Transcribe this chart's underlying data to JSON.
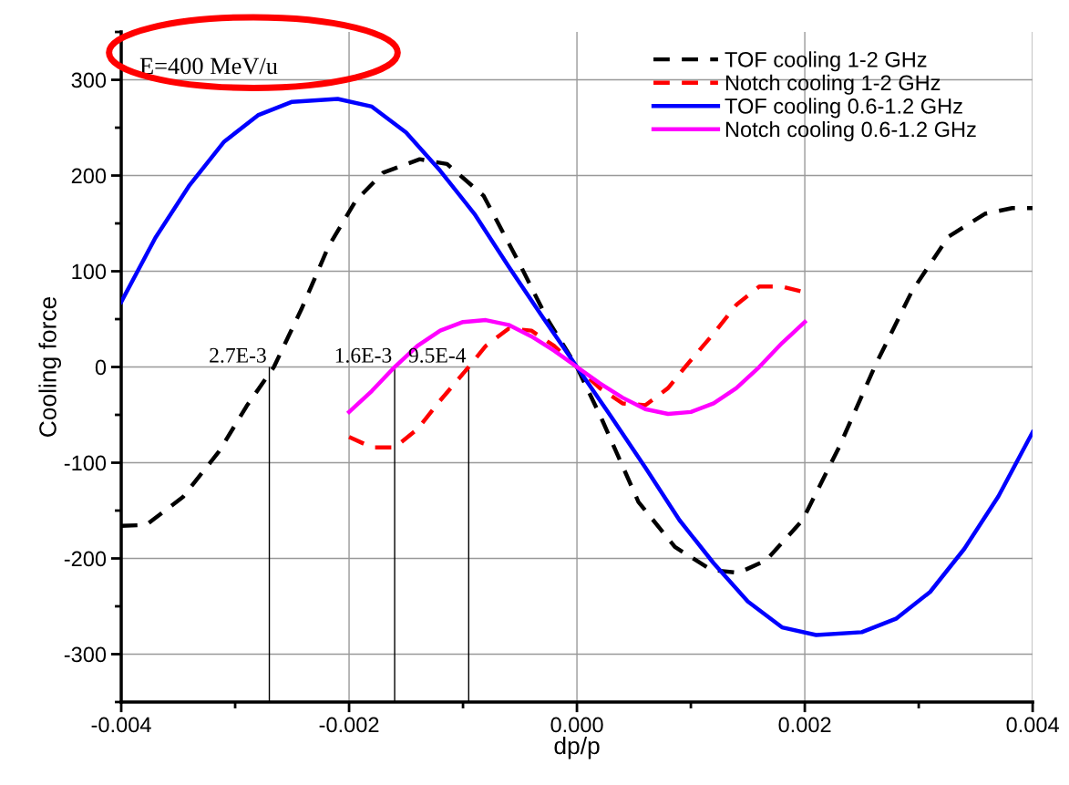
{
  "chart_data": {
    "type": "line",
    "xlabel": "dp/p",
    "ylabel": "Cooling force",
    "xlim": [
      -0.004,
      0.004
    ],
    "xticks": [
      {
        "value": -0.004,
        "label": "-0.004"
      },
      {
        "value": -0.002,
        "label": "-0.002"
      },
      {
        "value": 0,
        "label": "0.000"
      },
      {
        "value": 0.002,
        "label": "0.002"
      },
      {
        "value": 0.004,
        "label": "0.004"
      }
    ],
    "ylim": [
      -350,
      350
    ],
    "yticks": [
      {
        "value": -300,
        "label": "-300"
      },
      {
        "value": -200,
        "label": "-200"
      },
      {
        "value": -100,
        "label": "-100"
      },
      0,
      100,
      200,
      300
    ],
    "grid": true,
    "legend": "top right",
    "series": [
      {
        "name": "TOF cooling 1-2 GHz",
        "color": "#000000",
        "line_style": "dashed",
        "x": [
          -0.004,
          -0.00378,
          -0.00346,
          -0.00314,
          -0.0029,
          -0.00266,
          -0.00242,
          -0.00218,
          -0.00194,
          -0.0017,
          -0.00138,
          -0.00114,
          -0.00082,
          -0.0005,
          -0.00026,
          0,
          0.00022,
          0.00054,
          0.00086,
          0.00118,
          0.00142,
          0.00166,
          0.00198,
          0.0023,
          0.00262,
          0.00294,
          0.00326,
          0.00358,
          0.00382,
          0.004
        ],
        "values": [
          -166,
          -165,
          -136,
          -88,
          -41,
          0,
          60,
          126,
          174,
          203,
          217,
          212,
          179,
          107,
          50,
          0,
          -55,
          -141,
          -188,
          -212,
          -215,
          -202,
          -160,
          -84,
          2,
          79,
          136,
          160,
          166,
          166
        ]
      },
      {
        "name": "Notch cooling 1-2 GHz",
        "color": "#ff0000",
        "line_style": "dashed",
        "x": [
          -0.002,
          -0.0018,
          -0.0016,
          -0.0014,
          -0.0012,
          -0.00095,
          -0.0008,
          -0.0006,
          -0.0004,
          -0.0002,
          0,
          0.0002,
          0.0004,
          0.0006,
          0.0008,
          0.00095,
          0.0012,
          0.0014,
          0.0016,
          0.0018,
          0.002
        ],
        "values": [
          -73,
          -84,
          -84,
          -65,
          -35,
          0,
          22,
          40,
          38,
          22,
          0,
          -22,
          -38,
          -40,
          -22,
          0,
          35,
          65,
          84,
          84,
          78
        ]
      },
      {
        "name": "TOF cooling 0.6-1.2 GHz",
        "color": "#0000ff",
        "line_style": "solid",
        "x": [
          -0.004,
          -0.0037,
          -0.0034,
          -0.0031,
          -0.0028,
          -0.0025,
          -0.0021,
          -0.0018,
          -0.0015,
          -0.0012,
          -0.0009,
          -0.0006,
          -0.0003,
          0,
          0.0003,
          0.0006,
          0.0009,
          0.0012,
          0.0015,
          0.0018,
          0.0021,
          0.0025,
          0.0028,
          0.0031,
          0.0034,
          0.0037,
          0.004
        ],
        "values": [
          68,
          135,
          190,
          235,
          263,
          277,
          280,
          272,
          245,
          205,
          160,
          105,
          52,
          0,
          -52,
          -105,
          -160,
          -205,
          -245,
          -272,
          -280,
          -277,
          -263,
          -235,
          -190,
          -135,
          -68
        ]
      },
      {
        "name": "Notch cooling 0.6-1.2 GHz",
        "color": "#ff00ff",
        "line_style": "solid",
        "x": [
          -0.002,
          -0.0018,
          -0.0016,
          -0.0014,
          -0.0012,
          -0.001,
          -0.0008,
          -0.0006,
          -0.0004,
          -0.0002,
          0,
          0.0002,
          0.0004,
          0.0006,
          0.0008,
          0.001,
          0.0012,
          0.0014,
          0.0016,
          0.0018,
          0.002
        ],
        "values": [
          -47,
          -25,
          0,
          22,
          38,
          47,
          49,
          44,
          32,
          17,
          0,
          -17,
          -32,
          -44,
          -49,
          -47,
          -38,
          -22,
          0,
          25,
          47
        ]
      }
    ],
    "annotations": [
      "E=400 MeV/u",
      {
        "text": "2.7E-3",
        "x": -0.0027,
        "y": 0
      },
      {
        "text": "1.6E-3",
        "x": -0.0016,
        "y": 0
      },
      {
        "text": "9.5E-4",
        "x": -0.00095,
        "y": 0
      }
    ]
  }
}
